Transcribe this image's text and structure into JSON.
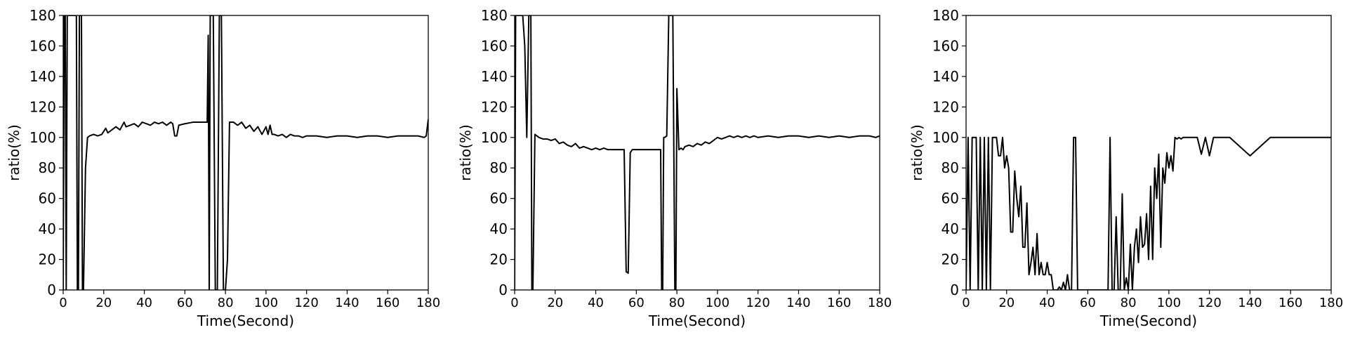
{
  "chart_data": [
    {
      "type": "line",
      "xlabel": "Time(Second)",
      "ylabel": "ratio(%)",
      "xlim": [
        0,
        180
      ],
      "ylim": [
        0,
        180
      ],
      "xticks": [
        0,
        20,
        40,
        60,
        80,
        100,
        120,
        140,
        160,
        180
      ],
      "yticks": [
        0,
        20,
        40,
        60,
        80,
        100,
        120,
        140,
        160,
        180
      ],
      "grid": false,
      "series": [
        {
          "color": "#000000",
          "x": [
            0,
            0.5,
            1,
            1.5,
            2,
            2.5,
            3,
            3.5,
            4,
            5,
            6,
            6.5,
            7,
            7.5,
            8,
            9,
            9.5,
            10,
            11,
            12,
            13,
            15,
            17,
            19,
            21,
            22,
            24,
            26,
            28,
            30,
            31,
            33,
            35,
            37,
            39,
            41,
            43,
            45,
            47,
            49,
            51,
            53,
            54,
            55,
            56,
            57,
            60,
            64,
            68,
            70,
            71,
            71.5,
            72,
            72.5,
            73,
            74,
            75,
            76,
            77,
            78,
            79,
            80,
            81,
            82,
            83,
            84,
            86,
            88,
            90,
            92,
            94,
            96,
            98,
            100,
            101,
            102,
            103,
            104,
            106,
            108,
            110,
            112,
            114,
            116,
            118,
            120,
            125,
            130,
            135,
            140,
            145,
            150,
            155,
            160,
            165,
            170,
            175,
            178,
            179,
            180
          ],
          "values": [
            0,
            180,
            180,
            0,
            180,
            180,
            180,
            180,
            180,
            180,
            180,
            180,
            0,
            0,
            180,
            180,
            0,
            0,
            80,
            100,
            101,
            102,
            101,
            102,
            106,
            103,
            105,
            107,
            105,
            110,
            107,
            108,
            109,
            107,
            110,
            109,
            108,
            110,
            109,
            110,
            108,
            110,
            109,
            101,
            101,
            108,
            109,
            110,
            110,
            110,
            110,
            167,
            0,
            180,
            180,
            180,
            0,
            0,
            180,
            180,
            0,
            0,
            20,
            110,
            110,
            110,
            108,
            110,
            106,
            108,
            104,
            107,
            102,
            107,
            102,
            108,
            102,
            102,
            101,
            102,
            100,
            102,
            101,
            101,
            100,
            101,
            101,
            100,
            101,
            101,
            100,
            101,
            101,
            100,
            101,
            101,
            101,
            100,
            101,
            112
          ]
        }
      ]
    },
    {
      "type": "line",
      "xlabel": "Time(Second)",
      "ylabel": "ratio(%)",
      "xlim": [
        0,
        180
      ],
      "ylim": [
        0,
        180
      ],
      "xticks": [
        0,
        20,
        40,
        60,
        80,
        100,
        120,
        140,
        160,
        180
      ],
      "yticks": [
        0,
        20,
        40,
        60,
        80,
        100,
        120,
        140,
        160,
        180
      ],
      "grid": false,
      "series": [
        {
          "color": "#000000",
          "x": [
            0,
            0.5,
            1,
            2,
            3,
            4,
            5,
            6,
            7,
            8,
            8.5,
            9,
            10,
            11,
            12,
            14,
            16,
            18,
            20,
            22,
            24,
            26,
            28,
            30,
            32,
            34,
            36,
            38,
            40,
            42,
            44,
            46,
            48,
            50,
            53,
            54,
            55,
            56,
            57,
            58,
            60,
            62,
            64,
            66,
            68,
            70,
            72,
            72.5,
            73,
            73.5,
            74,
            75,
            76,
            77,
            78,
            79,
            79.5,
            80,
            81,
            82,
            83,
            84,
            86,
            88,
            90,
            92,
            94,
            96,
            98,
            100,
            102,
            104,
            106,
            108,
            110,
            112,
            114,
            116,
            118,
            120,
            125,
            130,
            135,
            140,
            145,
            150,
            155,
            160,
            165,
            170,
            175,
            178,
            180
          ],
          "values": [
            0,
            180,
            180,
            180,
            180,
            180,
            160,
            100,
            180,
            180,
            0,
            0,
            102,
            101,
            100,
            99,
            99,
            98,
            99,
            96,
            97,
            95,
            94,
            96,
            93,
            94,
            93,
            92,
            93,
            92,
            93,
            92,
            92,
            92,
            92,
            92,
            12,
            11,
            90,
            92,
            92,
            92,
            92,
            92,
            92,
            92,
            92,
            0,
            0,
            100,
            100,
            101,
            180,
            180,
            180,
            0,
            0,
            132,
            92,
            93,
            92,
            94,
            95,
            94,
            96,
            95,
            97,
            96,
            98,
            100,
            99,
            100,
            101,
            100,
            101,
            100,
            101,
            100,
            101,
            100,
            101,
            100,
            101,
            101,
            100,
            101,
            100,
            101,
            100,
            101,
            101,
            100,
            101
          ]
        }
      ]
    },
    {
      "type": "line",
      "xlabel": "Time(Second)",
      "ylabel": "ratio(%)",
      "xlim": [
        0,
        180
      ],
      "ylim": [
        0,
        180
      ],
      "xticks": [
        0,
        20,
        40,
        60,
        80,
        100,
        120,
        140,
        160,
        180
      ],
      "yticks": [
        0,
        20,
        40,
        60,
        80,
        100,
        120,
        140,
        160,
        180
      ],
      "grid": false,
      "series": [
        {
          "color": "#000000",
          "x": [
            0,
            1,
            2,
            3,
            4,
            5,
            6,
            7,
            8,
            9,
            10,
            11,
            12,
            13,
            15,
            16,
            17,
            18,
            19,
            20,
            21,
            22,
            23,
            24,
            25,
            26,
            27,
            28,
            29,
            30,
            31,
            32,
            33,
            34,
            35,
            36,
            37,
            38,
            39,
            40,
            41,
            42,
            43,
            44,
            45,
            46,
            47,
            48,
            49,
            50,
            51,
            52,
            53,
            54,
            55,
            56,
            57,
            58,
            60,
            62,
            64,
            66,
            68,
            70,
            71,
            72,
            73,
            74,
            75,
            76,
            77,
            78,
            79,
            80,
            81,
            82,
            83,
            84,
            85,
            86,
            87,
            88,
            89,
            90,
            91,
            92,
            93,
            94,
            95,
            96,
            97,
            98,
            99,
            100,
            101,
            102,
            103,
            104,
            105,
            106,
            107,
            108,
            109,
            110,
            112,
            114,
            116,
            118,
            120,
            122,
            124,
            125,
            126,
            127,
            128,
            130,
            140,
            150,
            155,
            156,
            157,
            160,
            170,
            180
          ],
          "values": [
            0,
            100,
            0,
            100,
            100,
            100,
            0,
            100,
            0,
            100,
            0,
            100,
            0,
            100,
            100,
            88,
            88,
            100,
            80,
            88,
            80,
            38,
            38,
            78,
            60,
            48,
            68,
            28,
            28,
            57,
            10,
            18,
            28,
            10,
            37,
            10,
            18,
            10,
            10,
            18,
            10,
            10,
            0,
            0,
            0,
            2,
            0,
            5,
            0,
            10,
            0,
            0,
            100,
            100,
            0,
            0,
            0,
            0,
            0,
            0,
            0,
            0,
            0,
            0,
            100,
            0,
            0,
            48,
            0,
            0,
            63,
            0,
            8,
            0,
            30,
            0,
            28,
            40,
            18,
            48,
            28,
            30,
            50,
            20,
            68,
            20,
            80,
            60,
            89,
            28,
            80,
            70,
            90,
            80,
            88,
            78,
            100,
            99,
            100,
            99,
            100,
            100,
            100,
            100,
            100,
            100,
            89,
            100,
            88,
            100,
            100,
            100,
            100,
            100,
            100,
            100,
            88,
            100,
            100,
            100,
            100,
            100,
            100,
            100
          ]
        }
      ]
    }
  ]
}
